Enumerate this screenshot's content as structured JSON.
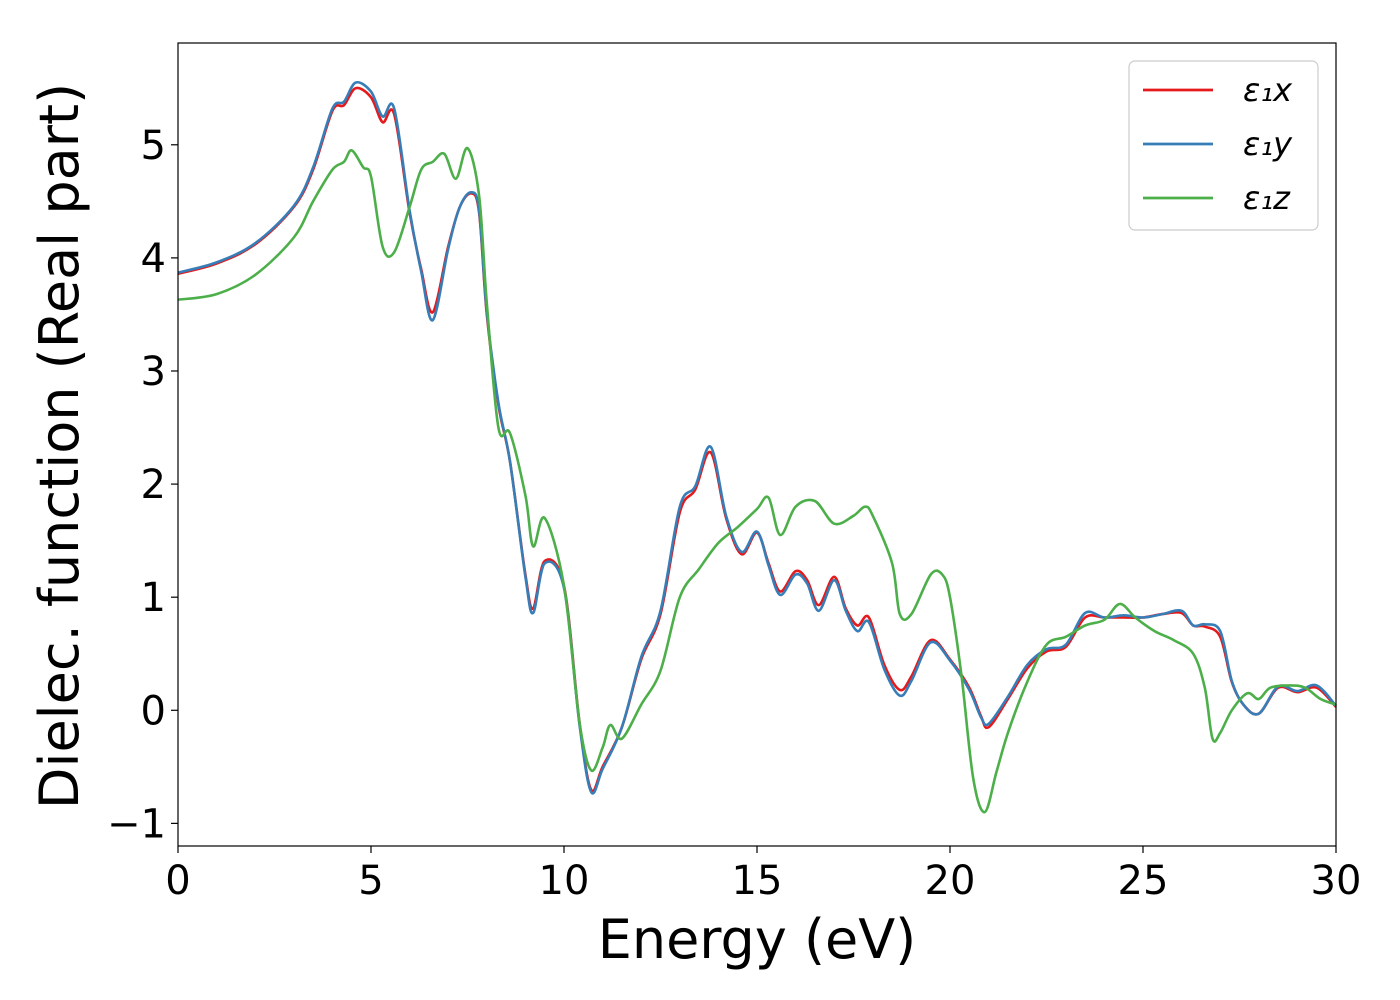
{
  "chart_data": {
    "type": "line",
    "title": "",
    "xlabel": "Energy (eV)",
    "ylabel": "Dielec. function (Real part)",
    "xlim": [
      0,
      30
    ],
    "ylim": [
      -1.2,
      5.9
    ],
    "xticks": [
      0,
      5,
      10,
      15,
      20,
      25,
      30
    ],
    "yticks": [
      -1,
      0,
      1,
      2,
      3,
      4,
      5
    ],
    "xtick_labels": [
      "0",
      "5",
      "10",
      "15",
      "20",
      "25",
      "30"
    ],
    "ytick_labels": [
      "−1",
      "0",
      "1",
      "2",
      "3",
      "4",
      "5"
    ],
    "grid": false,
    "legend_position": "top-right",
    "series": [
      {
        "name": "ε₁x",
        "color": "#e41a1c",
        "x": [
          0,
          1,
          2,
          3,
          3.5,
          4,
          4.3,
          4.6,
          5.0,
          5.3,
          5.6,
          6.0,
          6.3,
          6.6,
          7.0,
          7.3,
          7.6,
          7.8,
          8.0,
          8.3,
          8.6,
          9.0,
          9.2,
          9.5,
          10.0,
          10.4,
          10.7,
          11.0,
          11.5,
          12.0,
          12.5,
          13.0,
          13.4,
          13.8,
          14.2,
          14.6,
          15.0,
          15.3,
          15.6,
          16.0,
          16.3,
          16.6,
          17.0,
          17.3,
          17.6,
          17.9,
          18.3,
          18.7,
          19.0,
          19.5,
          20.0,
          20.5,
          20.8,
          21.0,
          21.5,
          22.0,
          22.5,
          23.0,
          23.5,
          24.0,
          24.5,
          25.0,
          25.5,
          26.0,
          26.3,
          26.6,
          27.0,
          27.3,
          27.6,
          28.0,
          28.5,
          29.0,
          29.5,
          30.0
        ],
        "values": [
          3.86,
          3.95,
          4.12,
          4.45,
          4.78,
          5.3,
          5.35,
          5.5,
          5.42,
          5.2,
          5.27,
          4.4,
          3.9,
          3.52,
          4.1,
          4.45,
          4.57,
          4.4,
          3.5,
          2.7,
          2.2,
          1.2,
          0.9,
          1.32,
          1.1,
          -0.1,
          -0.7,
          -0.5,
          -0.15,
          0.45,
          0.85,
          1.75,
          1.95,
          2.28,
          1.7,
          1.38,
          1.57,
          1.3,
          1.05,
          1.23,
          1.15,
          0.93,
          1.18,
          0.9,
          0.75,
          0.82,
          0.4,
          0.18,
          0.3,
          0.62,
          0.45,
          0.2,
          -0.05,
          -0.15,
          0.1,
          0.37,
          0.52,
          0.56,
          0.82,
          0.82,
          0.82,
          0.82,
          0.85,
          0.86,
          0.75,
          0.74,
          0.65,
          0.25,
          0.05,
          -0.03,
          0.2,
          0.16,
          0.2,
          0.03
        ]
      },
      {
        "name": "ε₁y",
        "color": "#377eb8",
        "x": [
          0,
          1,
          2,
          3,
          3.5,
          4,
          4.3,
          4.6,
          5.0,
          5.3,
          5.6,
          6.0,
          6.3,
          6.6,
          7.0,
          7.3,
          7.6,
          7.8,
          8.0,
          8.3,
          8.6,
          9.0,
          9.2,
          9.5,
          10.0,
          10.4,
          10.7,
          11.0,
          11.5,
          12.0,
          12.5,
          13.0,
          13.4,
          13.8,
          14.2,
          14.6,
          15.0,
          15.3,
          15.6,
          16.0,
          16.3,
          16.6,
          17.0,
          17.3,
          17.6,
          17.9,
          18.3,
          18.7,
          19.0,
          19.5,
          20.0,
          20.5,
          20.8,
          21.0,
          21.5,
          22.0,
          22.5,
          23.0,
          23.5,
          24.0,
          24.5,
          25.0,
          25.5,
          26.0,
          26.3,
          26.6,
          27.0,
          27.3,
          27.6,
          28.0,
          28.5,
          29.0,
          29.5,
          30.0
        ],
        "values": [
          3.87,
          3.96,
          4.13,
          4.46,
          4.8,
          5.32,
          5.38,
          5.55,
          5.47,
          5.25,
          5.32,
          4.42,
          3.88,
          3.45,
          4.08,
          4.45,
          4.58,
          4.42,
          3.52,
          2.72,
          2.2,
          1.18,
          0.86,
          1.3,
          1.08,
          -0.12,
          -0.72,
          -0.52,
          -0.15,
          0.47,
          0.88,
          1.8,
          1.98,
          2.33,
          1.72,
          1.4,
          1.58,
          1.28,
          1.02,
          1.2,
          1.12,
          0.88,
          1.15,
          0.88,
          0.7,
          0.78,
          0.36,
          0.13,
          0.26,
          0.6,
          0.44,
          0.18,
          -0.06,
          -0.12,
          0.12,
          0.4,
          0.54,
          0.58,
          0.86,
          0.82,
          0.84,
          0.82,
          0.85,
          0.88,
          0.75,
          0.76,
          0.7,
          0.26,
          0.05,
          -0.03,
          0.21,
          0.17,
          0.22,
          0.04
        ]
      },
      {
        "name": "ε₁z",
        "color": "#4daf4a",
        "x": [
          0,
          1,
          2,
          3,
          3.5,
          4,
          4.3,
          4.5,
          4.8,
          5.0,
          5.3,
          5.6,
          6.0,
          6.3,
          6.6,
          6.9,
          7.2,
          7.5,
          7.8,
          8.0,
          8.3,
          8.6,
          9.0,
          9.2,
          9.5,
          10.0,
          10.4,
          10.7,
          11.0,
          11.2,
          11.5,
          12.0,
          12.5,
          13.0,
          13.5,
          14.0,
          14.5,
          15.0,
          15.3,
          15.6,
          16.0,
          16.5,
          17.0,
          17.5,
          17.8,
          18.0,
          18.5,
          18.7,
          19.0,
          19.5,
          19.8,
          20.0,
          20.3,
          20.6,
          20.9,
          21.2,
          21.5,
          22.0,
          22.5,
          23.0,
          23.5,
          24.0,
          24.4,
          24.8,
          25.3,
          25.8,
          26.3,
          26.6,
          26.8,
          27.0,
          27.3,
          27.7,
          28.0,
          28.3,
          28.8,
          29.2,
          29.6,
          30.0
        ],
        "values": [
          3.63,
          3.68,
          3.85,
          4.18,
          4.5,
          4.78,
          4.85,
          4.95,
          4.8,
          4.72,
          4.1,
          4.05,
          4.45,
          4.78,
          4.85,
          4.92,
          4.7,
          4.97,
          4.55,
          3.6,
          2.5,
          2.45,
          1.9,
          1.45,
          1.7,
          1.1,
          -0.1,
          -0.53,
          -0.33,
          -0.13,
          -0.25,
          0.05,
          0.35,
          1.0,
          1.25,
          1.48,
          1.62,
          1.78,
          1.88,
          1.55,
          1.8,
          1.85,
          1.65,
          1.72,
          1.8,
          1.72,
          1.3,
          0.85,
          0.85,
          1.2,
          1.2,
          1.0,
          0.3,
          -0.6,
          -0.9,
          -0.55,
          -0.2,
          0.25,
          0.58,
          0.65,
          0.75,
          0.8,
          0.94,
          0.82,
          0.7,
          0.62,
          0.5,
          0.2,
          -0.25,
          -0.2,
          0.0,
          0.15,
          0.1,
          0.2,
          0.22,
          0.2,
          0.1,
          0.05
        ]
      }
    ]
  }
}
